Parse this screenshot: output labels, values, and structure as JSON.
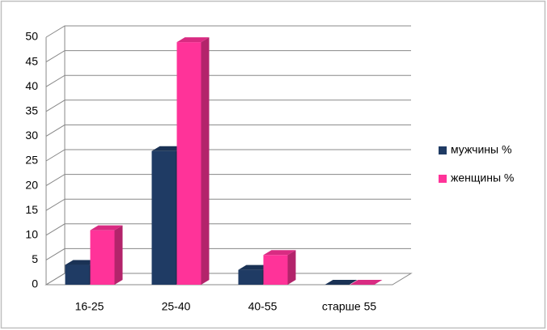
{
  "chart_data": {
    "type": "bar3d",
    "categories": [
      "16-25",
      "25-40",
      "40-55",
      "старше 55"
    ],
    "series": [
      {
        "name": "мужчины %",
        "color": "#1f3b64",
        "values": [
          4,
          27,
          3,
          0
        ]
      },
      {
        "name": "женщины %",
        "color": "#ff3399",
        "values": [
          11,
          49,
          6,
          0
        ]
      }
    ],
    "ylim": [
      0,
      50
    ],
    "yticks": [
      0,
      5,
      10,
      15,
      20,
      25,
      30,
      35,
      40,
      45,
      50
    ],
    "grid": true,
    "legend": "right"
  }
}
